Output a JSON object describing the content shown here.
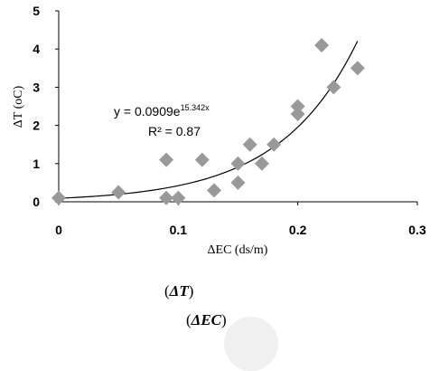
{
  "chart_data": {
    "type": "scatter",
    "xlabel": "ΔEC (ds/m)",
    "ylabel": "ΔT (oC)",
    "xlim": [
      0,
      0.3
    ],
    "ylim": [
      0,
      5
    ],
    "x_ticks": [
      "0",
      "0.1",
      "0.2",
      "0.3"
    ],
    "y_ticks": [
      "0",
      "1",
      "2",
      "3",
      "4",
      "5"
    ],
    "grid": false,
    "marker": "diamond",
    "marker_color": "#999999",
    "trendline_color": "#000000",
    "points": [
      {
        "x": 0.0,
        "y": 0.1
      },
      {
        "x": 0.05,
        "y": 0.25
      },
      {
        "x": 0.09,
        "y": 0.1
      },
      {
        "x": 0.09,
        "y": 1.1
      },
      {
        "x": 0.1,
        "y": 0.1
      },
      {
        "x": 0.12,
        "y": 1.1
      },
      {
        "x": 0.13,
        "y": 0.3
      },
      {
        "x": 0.15,
        "y": 0.5
      },
      {
        "x": 0.15,
        "y": 1.0
      },
      {
        "x": 0.16,
        "y": 1.5
      },
      {
        "x": 0.17,
        "y": 1.0
      },
      {
        "x": 0.18,
        "y": 1.5
      },
      {
        "x": 0.2,
        "y": 2.3
      },
      {
        "x": 0.2,
        "y": 2.5
      },
      {
        "x": 0.22,
        "y": 4.1
      },
      {
        "x": 0.23,
        "y": 3.0
      },
      {
        "x": 0.25,
        "y": 3.5
      }
    ],
    "trendline": {
      "type": "exponential",
      "a": 0.0909,
      "b": 15.342,
      "x_range": [
        0,
        0.25
      ],
      "equation_base": "y = 0.0909e",
      "equation_exponent": "15.342x",
      "r_squared_label": "R² = 0.87"
    }
  },
  "captions": {
    "line1_open": "(",
    "line1_symbol": "ΔT",
    "line1_close": ")",
    "line2_open": "(",
    "line2_symbol": "ΔEC",
    "line2_close": ")"
  }
}
